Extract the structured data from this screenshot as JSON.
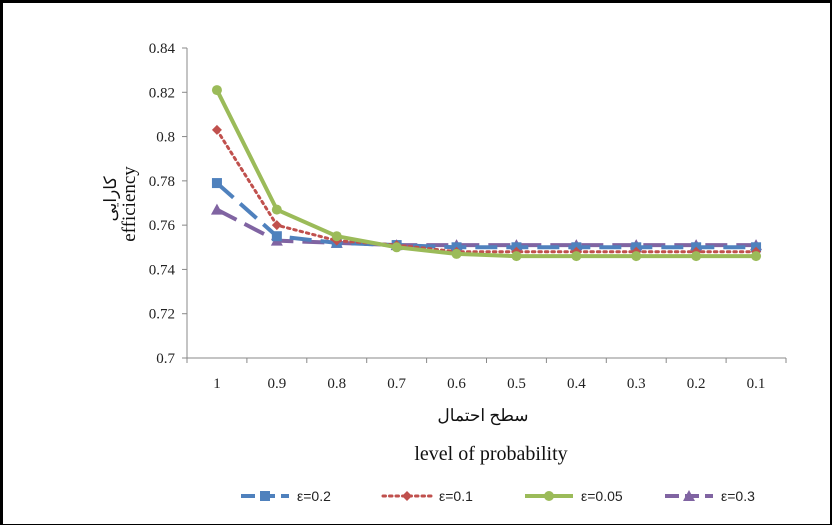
{
  "chart_data": {
    "type": "line",
    "title": "",
    "categories": [
      "1",
      "0.9",
      "0.8",
      "0.7",
      "0.6",
      "0.5",
      "0.4",
      "0.3",
      "0.2",
      "0.1"
    ],
    "xlabel_fa": "سطح احتمال",
    "xlabel": "level of probability",
    "ylabel_fa": "کارایی",
    "ylabel": "efficiency",
    "ylim": [
      0.7,
      0.84
    ],
    "yticks": [
      "0.7",
      "0.72",
      "0.74",
      "0.76",
      "0.78",
      "0.8",
      "0.82",
      "0.84"
    ],
    "grid": false,
    "legend_position": "bottom",
    "series": [
      {
        "name": "ε=0.2",
        "color": "#4f81bd",
        "dash": "long-dash",
        "marker": "square",
        "values": [
          0.779,
          0.755,
          0.752,
          0.751,
          0.75,
          0.75,
          0.75,
          0.75,
          0.75,
          0.75
        ]
      },
      {
        "name": "ε=0.1",
        "color": "#c0504d",
        "dash": "dotted",
        "marker": "diamond",
        "values": [
          0.803,
          0.76,
          0.753,
          0.751,
          0.748,
          0.748,
          0.748,
          0.748,
          0.748,
          0.748
        ]
      },
      {
        "name": "ε=0.05",
        "color": "#9bbb59",
        "dash": "solid",
        "marker": "circle",
        "values": [
          0.821,
          0.767,
          0.755,
          0.75,
          0.747,
          0.746,
          0.746,
          0.746,
          0.746,
          0.746
        ]
      },
      {
        "name": "ε=0.3",
        "color": "#8064a2",
        "dash": "long-dash",
        "marker": "triangle",
        "values": [
          0.767,
          0.753,
          0.752,
          0.751,
          0.751,
          0.751,
          0.751,
          0.751,
          0.751,
          0.751
        ]
      }
    ]
  }
}
